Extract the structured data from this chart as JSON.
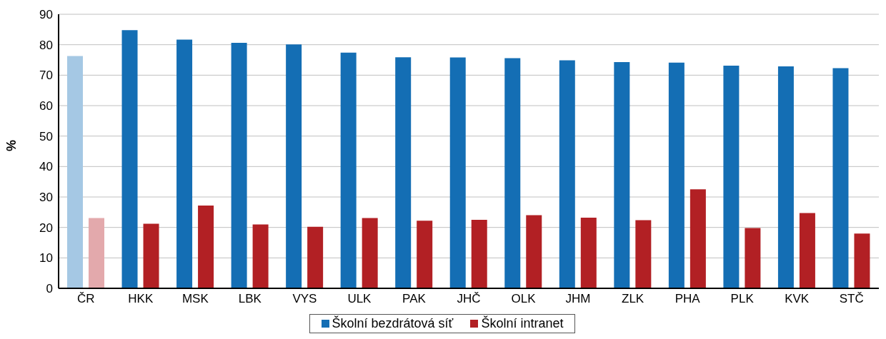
{
  "chart_data": {
    "type": "bar",
    "ylabel": "%",
    "categories": [
      "ČR",
      "HKK",
      "MSK",
      "LBK",
      "VYS",
      "ULK",
      "PAK",
      "JHČ",
      "OLK",
      "JHM",
      "ZLK",
      "PHA",
      "PLK",
      "KVK",
      "STČ"
    ],
    "series": [
      {
        "name": "Školní bezdrátová síť",
        "color": "#146eb4",
        "colors": [
          "#a5c8e4",
          "#146eb4",
          "#146eb4",
          "#146eb4",
          "#146eb4",
          "#146eb4",
          "#146eb4",
          "#146eb4",
          "#146eb4",
          "#146eb4",
          "#146eb4",
          "#146eb4",
          "#146eb4",
          "#146eb4",
          "#146eb4"
        ],
        "values": [
          76.3,
          84.8,
          81.7,
          80.6,
          80.1,
          77.4,
          75.9,
          75.8,
          75.6,
          74.9,
          74.3,
          74.1,
          73.1,
          72.9,
          72.3
        ]
      },
      {
        "name": "Školní intranet",
        "color": "#b22024",
        "colors": [
          "#e3a9ac",
          "#b22024",
          "#b22024",
          "#b22024",
          "#b22024",
          "#b22024",
          "#b22024",
          "#b22024",
          "#b22024",
          "#b22024",
          "#b22024",
          "#b22024",
          "#b22024",
          "#b22024",
          "#b22024"
        ],
        "values": [
          23.1,
          21.2,
          27.2,
          21.0,
          20.2,
          23.1,
          22.2,
          22.5,
          24.0,
          23.2,
          22.4,
          32.5,
          19.8,
          24.7,
          18.0
        ]
      }
    ],
    "ylim": [
      0,
      90
    ],
    "yticks": [
      0,
      10,
      20,
      30,
      40,
      50,
      60,
      70,
      80,
      90
    ],
    "grid": "y",
    "legend": "bottom"
  }
}
